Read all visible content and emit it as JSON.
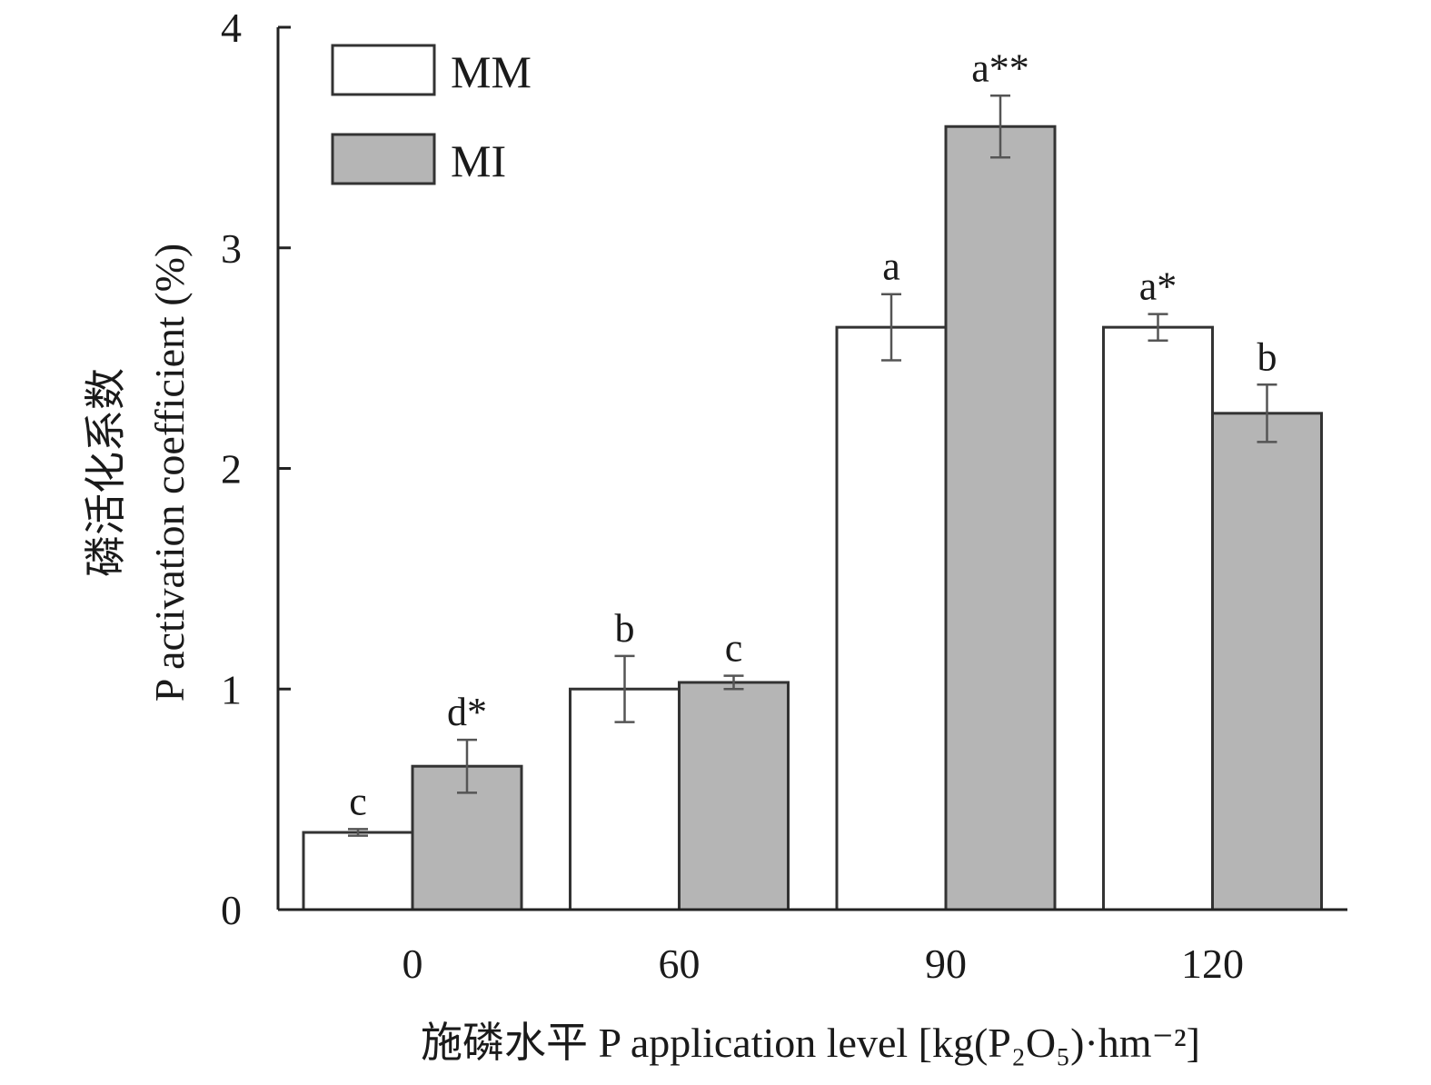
{
  "chart_data": {
    "type": "bar",
    "xlabel": "施磷水平 P application level [kg(P₂O₅)·hm⁻²]",
    "ylabel_cn": "磷活化系数",
    "ylabel_en": "P activation coefficient (%)",
    "categories": [
      "0",
      "60",
      "90",
      "120"
    ],
    "ylim": [
      0,
      4
    ],
    "yticks": [
      "0",
      "1",
      "2",
      "3",
      "4"
    ],
    "legend_position": "top-left",
    "series": [
      {
        "name": "MM",
        "color": "#ffffff",
        "values": [
          0.35,
          1.0,
          2.64,
          2.64
        ],
        "errors": [
          0.015,
          0.15,
          0.15,
          0.06
        ],
        "labels": [
          "c",
          "b",
          "a",
          "a*"
        ]
      },
      {
        "name": "MI",
        "color": "#b5b5b5",
        "values": [
          0.65,
          1.03,
          3.55,
          2.25
        ],
        "errors": [
          0.12,
          0.03,
          0.14,
          0.13
        ],
        "labels": [
          "d*",
          "c",
          "a**",
          "b"
        ]
      }
    ]
  }
}
